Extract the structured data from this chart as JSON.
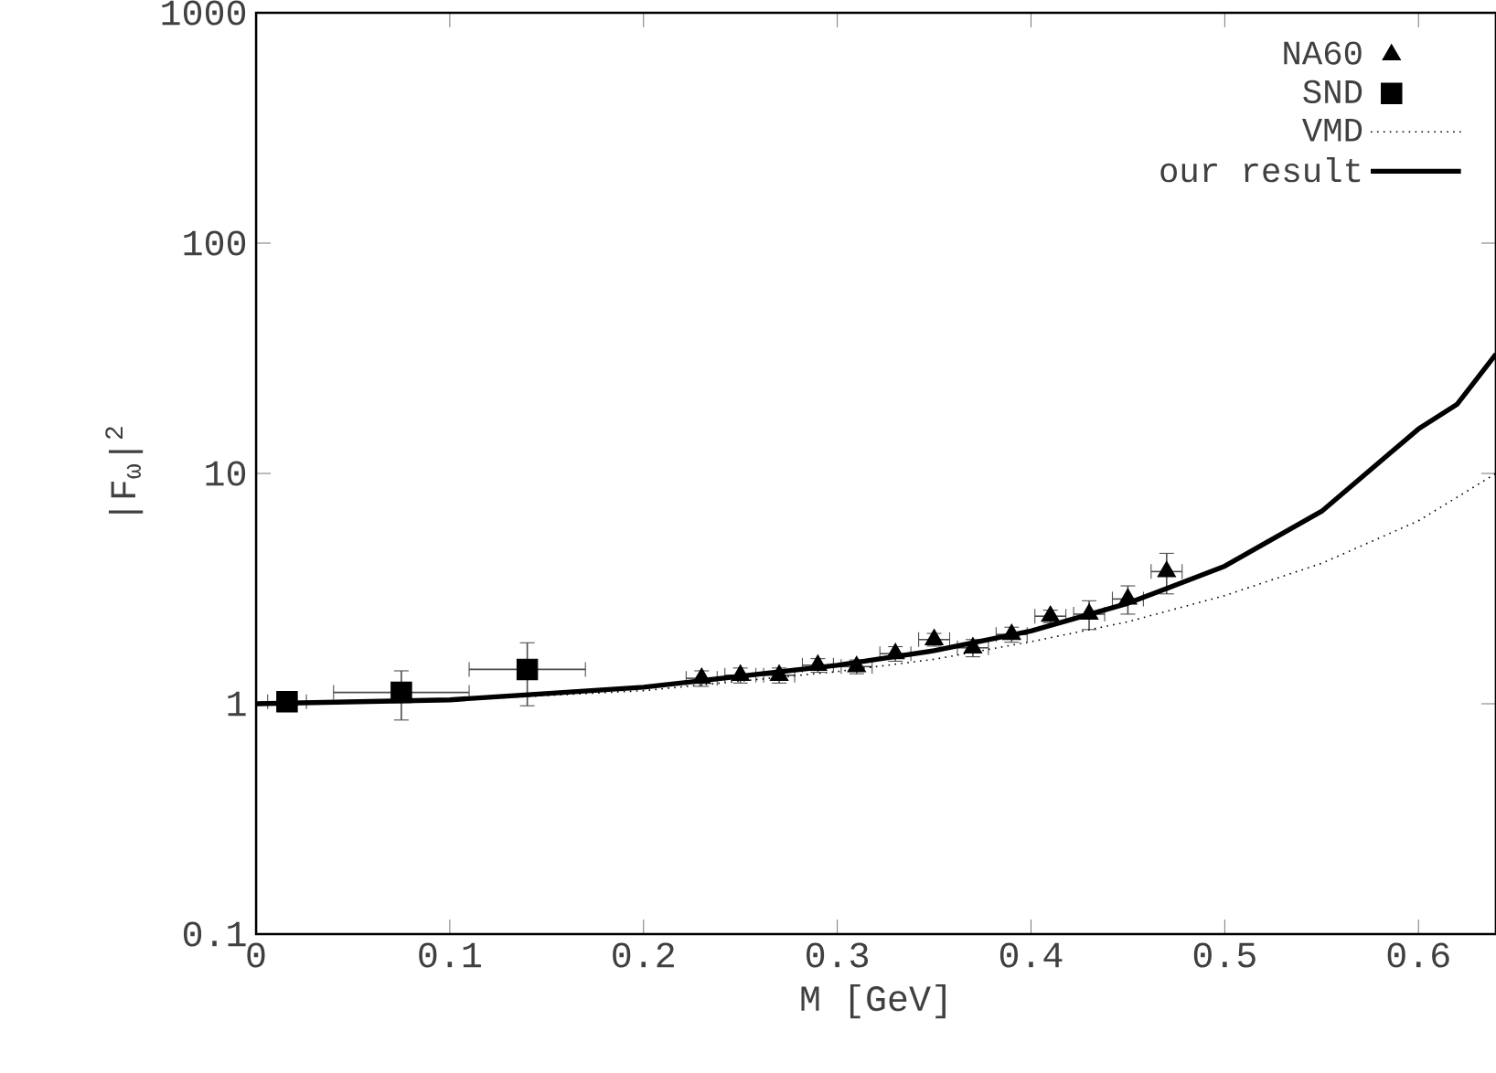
{
  "chart_data": {
    "type": "scatter",
    "xlabel": "M [GeV]",
    "ylabel": "|F$_{ω}$|$^{2}$",
    "xlim": [
      0,
      0.64
    ],
    "ylim": [
      0.1,
      1000
    ],
    "xticks": [
      0,
      0.1,
      0.2,
      0.3,
      0.4,
      0.5,
      0.6
    ],
    "yticks": [
      0.1,
      1,
      10,
      100,
      1000
    ],
    "log": "y",
    "grid": false,
    "legend": "top right",
    "series": [
      {
        "name": "NA60",
        "marker": "triangle",
        "color": "#000000",
        "x": [
          0.23,
          0.25,
          0.27,
          0.29,
          0.31,
          0.33,
          0.35,
          0.37,
          0.39,
          0.41,
          0.43,
          0.45,
          0.47
        ],
        "values": [
          1.29,
          1.33,
          1.33,
          1.47,
          1.45,
          1.65,
          1.9,
          1.75,
          2.0,
          2.4,
          2.45,
          2.85,
          3.75
        ],
        "errors": [
          0.1,
          0.1,
          0.1,
          0.1,
          0.1,
          0.12,
          0.12,
          0.15,
          0.15,
          0.15,
          0.35,
          0.4,
          0.75
        ],
        "xerrors": [
          0.008,
          0.008,
          0.008,
          0.008,
          0.008,
          0.008,
          0.008,
          0.008,
          0.008,
          0.008,
          0.008,
          0.008,
          0.008
        ]
      },
      {
        "name": "SND",
        "marker": "square",
        "color": "#000000",
        "x": [
          0.016,
          0.075,
          0.14
        ],
        "values": [
          1.02,
          1.12,
          1.41
        ],
        "errors": [
          0.06,
          0.27,
          0.43
        ],
        "xerrors": [
          0.01,
          0.035,
          0.03
        ]
      },
      {
        "name": "VMD",
        "type": "line",
        "line_style": "dotted",
        "color": "#000000",
        "x": [
          0,
          0.1,
          0.2,
          0.3,
          0.35,
          0.4,
          0.45,
          0.5,
          0.55,
          0.6,
          0.64
        ],
        "values": [
          1,
          1.034,
          1.14,
          1.38,
          1.56,
          1.86,
          2.27,
          2.95,
          4.07,
          6.23,
          10
        ]
      },
      {
        "name": "our result",
        "type": "line",
        "line_style": "solid",
        "color": "#000000",
        "x": [
          0,
          0.1,
          0.2,
          0.3,
          0.35,
          0.4,
          0.45,
          0.5,
          0.55,
          0.6,
          0.62,
          0.64
        ],
        "values": [
          1,
          1.04,
          1.18,
          1.47,
          1.7,
          2.07,
          2.73,
          3.96,
          6.85,
          15.6,
          20,
          33
        ]
      }
    ]
  }
}
